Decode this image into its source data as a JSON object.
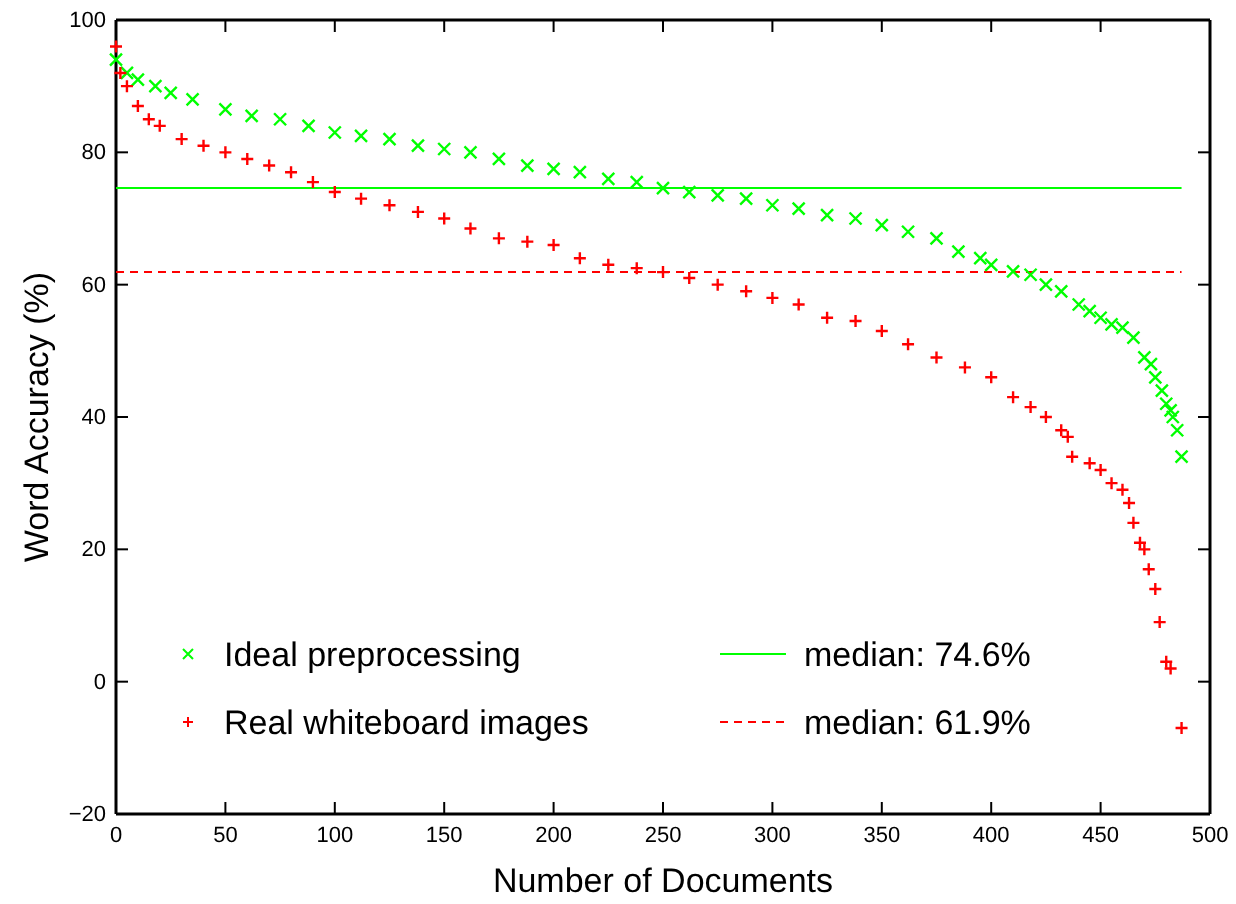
{
  "chart_data": {
    "type": "scatter",
    "xlabel": "Number of Documents",
    "ylabel": "Word Accuracy (%)",
    "xlim": [
      0,
      500
    ],
    "ylim": [
      -20,
      100
    ],
    "xticks": [
      0,
      50,
      100,
      150,
      200,
      250,
      300,
      350,
      400,
      450,
      500
    ],
    "yticks": [
      -20,
      0,
      20,
      40,
      60,
      80,
      100
    ],
    "grid": false,
    "legend": "bottom left",
    "series": [
      {
        "name": "Ideal preprocessing",
        "color": "#00ff00",
        "marker": "cross",
        "x": [
          0,
          5,
          10,
          18,
          25,
          35,
          50,
          62,
          75,
          88,
          100,
          112,
          125,
          138,
          150,
          162,
          175,
          188,
          200,
          212,
          225,
          238,
          250,
          262,
          275,
          288,
          300,
          312,
          325,
          338,
          350,
          362,
          375,
          385,
          395,
          400,
          410,
          418,
          425,
          432,
          440,
          445,
          450,
          455,
          460,
          465,
          470,
          473,
          475,
          478,
          480,
          482,
          483,
          485,
          487
        ],
        "values": [
          94,
          92,
          91,
          90,
          89,
          88,
          86.5,
          85.5,
          85,
          84,
          83,
          82.5,
          82,
          81,
          80.5,
          80,
          79,
          78,
          77.5,
          77,
          76,
          75.5,
          74.6,
          74,
          73.5,
          73,
          72,
          71.5,
          70.5,
          70,
          69,
          68,
          67,
          65,
          64,
          63,
          62,
          61.5,
          60,
          59,
          57,
          56,
          55,
          54,
          53.5,
          52,
          49,
          48,
          46,
          44,
          42,
          41,
          40,
          38,
          34
        ]
      },
      {
        "name": "Real whiteboard images",
        "color": "#ff0000",
        "marker": "plus",
        "x": [
          0,
          2,
          5,
          10,
          15,
          20,
          30,
          40,
          50,
          60,
          70,
          80,
          90,
          100,
          112,
          125,
          138,
          150,
          162,
          175,
          188,
          200,
          212,
          225,
          238,
          250,
          262,
          275,
          288,
          300,
          312,
          325,
          338,
          350,
          362,
          375,
          388,
          400,
          410,
          418,
          425,
          432,
          435,
          437,
          445,
          450,
          455,
          460,
          463,
          465,
          468,
          470,
          472,
          475,
          477,
          480,
          482,
          487
        ],
        "values": [
          96,
          92,
          90,
          87,
          85,
          84,
          82,
          81,
          80,
          79,
          78,
          77,
          75.5,
          74,
          73,
          72,
          71,
          70,
          68.5,
          67,
          66.5,
          66,
          64,
          63,
          62.5,
          61.9,
          61,
          60,
          59,
          58,
          57,
          55,
          54.5,
          53,
          51,
          49,
          47.5,
          46,
          43,
          41.5,
          40,
          38,
          37,
          34,
          33,
          32,
          30,
          29,
          27,
          24,
          21,
          20,
          17,
          14,
          9,
          3,
          2,
          -7
        ]
      }
    ],
    "ref_lines": [
      {
        "axis": "y",
        "value": 74.6,
        "label": "median: 74.6%",
        "color": "#00ff00",
        "line_style": "solid"
      },
      {
        "axis": "y",
        "value": 61.9,
        "label": "median: 61.9%",
        "color": "#ff0000",
        "line_style": "dashed"
      }
    ]
  }
}
